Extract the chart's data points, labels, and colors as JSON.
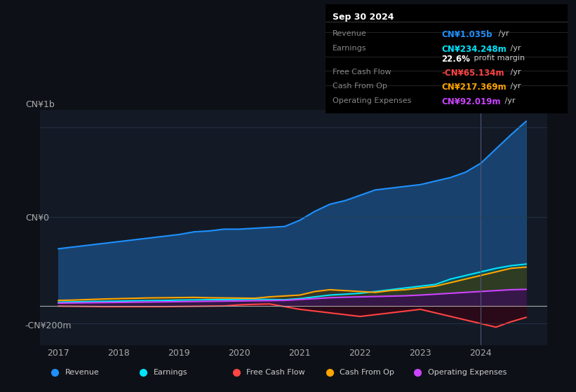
{
  "background_color": "#0d1117",
  "plot_bg_color": "#131a25",
  "title_box": {
    "date": "Sep 30 2024",
    "rows": [
      {
        "label": "Revenue",
        "value": "CN¥1.035b",
        "unit": " /yr",
        "color": "#1e90ff"
      },
      {
        "label": "Earnings",
        "value": "CN¥234.248m",
        "unit": " /yr",
        "color": "#00e5ff"
      },
      {
        "label": "",
        "value": "22.6%",
        "unit": " profit margin",
        "color": "#ffffff"
      },
      {
        "label": "Free Cash Flow",
        "value": "-CN¥65.134m",
        "unit": " /yr",
        "color": "#ff4444"
      },
      {
        "label": "Cash From Op",
        "value": "CN¥217.369m",
        "unit": " /yr",
        "color": "#ffa500"
      },
      {
        "label": "Operating Expenses",
        "value": "CN¥92.019m",
        "unit": " /yr",
        "color": "#cc44ff"
      }
    ]
  },
  "ylabel_top": "CN¥1b",
  "ylabel_zero": "CN¥0",
  "ylabel_bottom": "-CN¥200m",
  "x_ticks": [
    "2017",
    "2018",
    "2019",
    "2020",
    "2021",
    "2022",
    "2023",
    "2024"
  ],
  "legend": [
    {
      "label": "Revenue",
      "color": "#1e90ff"
    },
    {
      "label": "Earnings",
      "color": "#00e5ff"
    },
    {
      "label": "Free Cash Flow",
      "color": "#ff4444"
    },
    {
      "label": "Cash From Op",
      "color": "#ffa500"
    },
    {
      "label": "Operating Expenses",
      "color": "#cc44ff"
    }
  ],
  "series": {
    "x": [
      2017.0,
      2017.25,
      2017.5,
      2017.75,
      2018.0,
      2018.25,
      2018.5,
      2018.75,
      2019.0,
      2019.25,
      2019.5,
      2019.75,
      2020.0,
      2020.25,
      2020.5,
      2020.75,
      2021.0,
      2021.25,
      2021.5,
      2021.75,
      2022.0,
      2022.25,
      2022.5,
      2022.75,
      2023.0,
      2023.25,
      2023.5,
      2023.75,
      2024.0,
      2024.25,
      2024.5,
      2024.75
    ],
    "revenue": [
      320,
      330,
      340,
      350,
      360,
      370,
      380,
      390,
      400,
      415,
      420,
      430,
      430,
      435,
      440,
      445,
      480,
      530,
      570,
      590,
      620,
      650,
      660,
      670,
      680,
      700,
      720,
      750,
      800,
      880,
      960,
      1035
    ],
    "earnings": [
      20,
      22,
      24,
      25,
      26,
      28,
      29,
      30,
      32,
      33,
      34,
      35,
      36,
      37,
      35,
      34,
      40,
      50,
      60,
      65,
      70,
      80,
      90,
      100,
      110,
      120,
      150,
      170,
      190,
      210,
      225,
      234
    ],
    "free_cash_flow": [
      -2,
      -3,
      -4,
      -5,
      -5,
      -5,
      -5,
      -5,
      -4,
      -3,
      -2,
      -1,
      5,
      8,
      10,
      -5,
      -20,
      -30,
      -40,
      -50,
      -60,
      -50,
      -40,
      -30,
      -20,
      -40,
      -60,
      -80,
      -100,
      -120,
      -90,
      -65
    ],
    "cash_from_op": [
      30,
      32,
      35,
      38,
      40,
      42,
      44,
      45,
      46,
      47,
      45,
      44,
      43,
      42,
      50,
      55,
      60,
      80,
      90,
      85,
      80,
      75,
      85,
      90,
      100,
      110,
      130,
      150,
      170,
      190,
      210,
      217
    ],
    "operating_expenses": [
      15,
      16,
      17,
      18,
      19,
      20,
      21,
      22,
      23,
      24,
      25,
      26,
      27,
      28,
      29,
      30,
      35,
      40,
      45,
      48,
      50,
      52,
      54,
      56,
      60,
      65,
      70,
      75,
      80,
      85,
      90,
      92
    ]
  },
  "ylim": [
    -220,
    1100
  ],
  "xlim": [
    2016.7,
    2025.1
  ],
  "zero_line_y": 0,
  "vertical_line_x": 2024.0
}
